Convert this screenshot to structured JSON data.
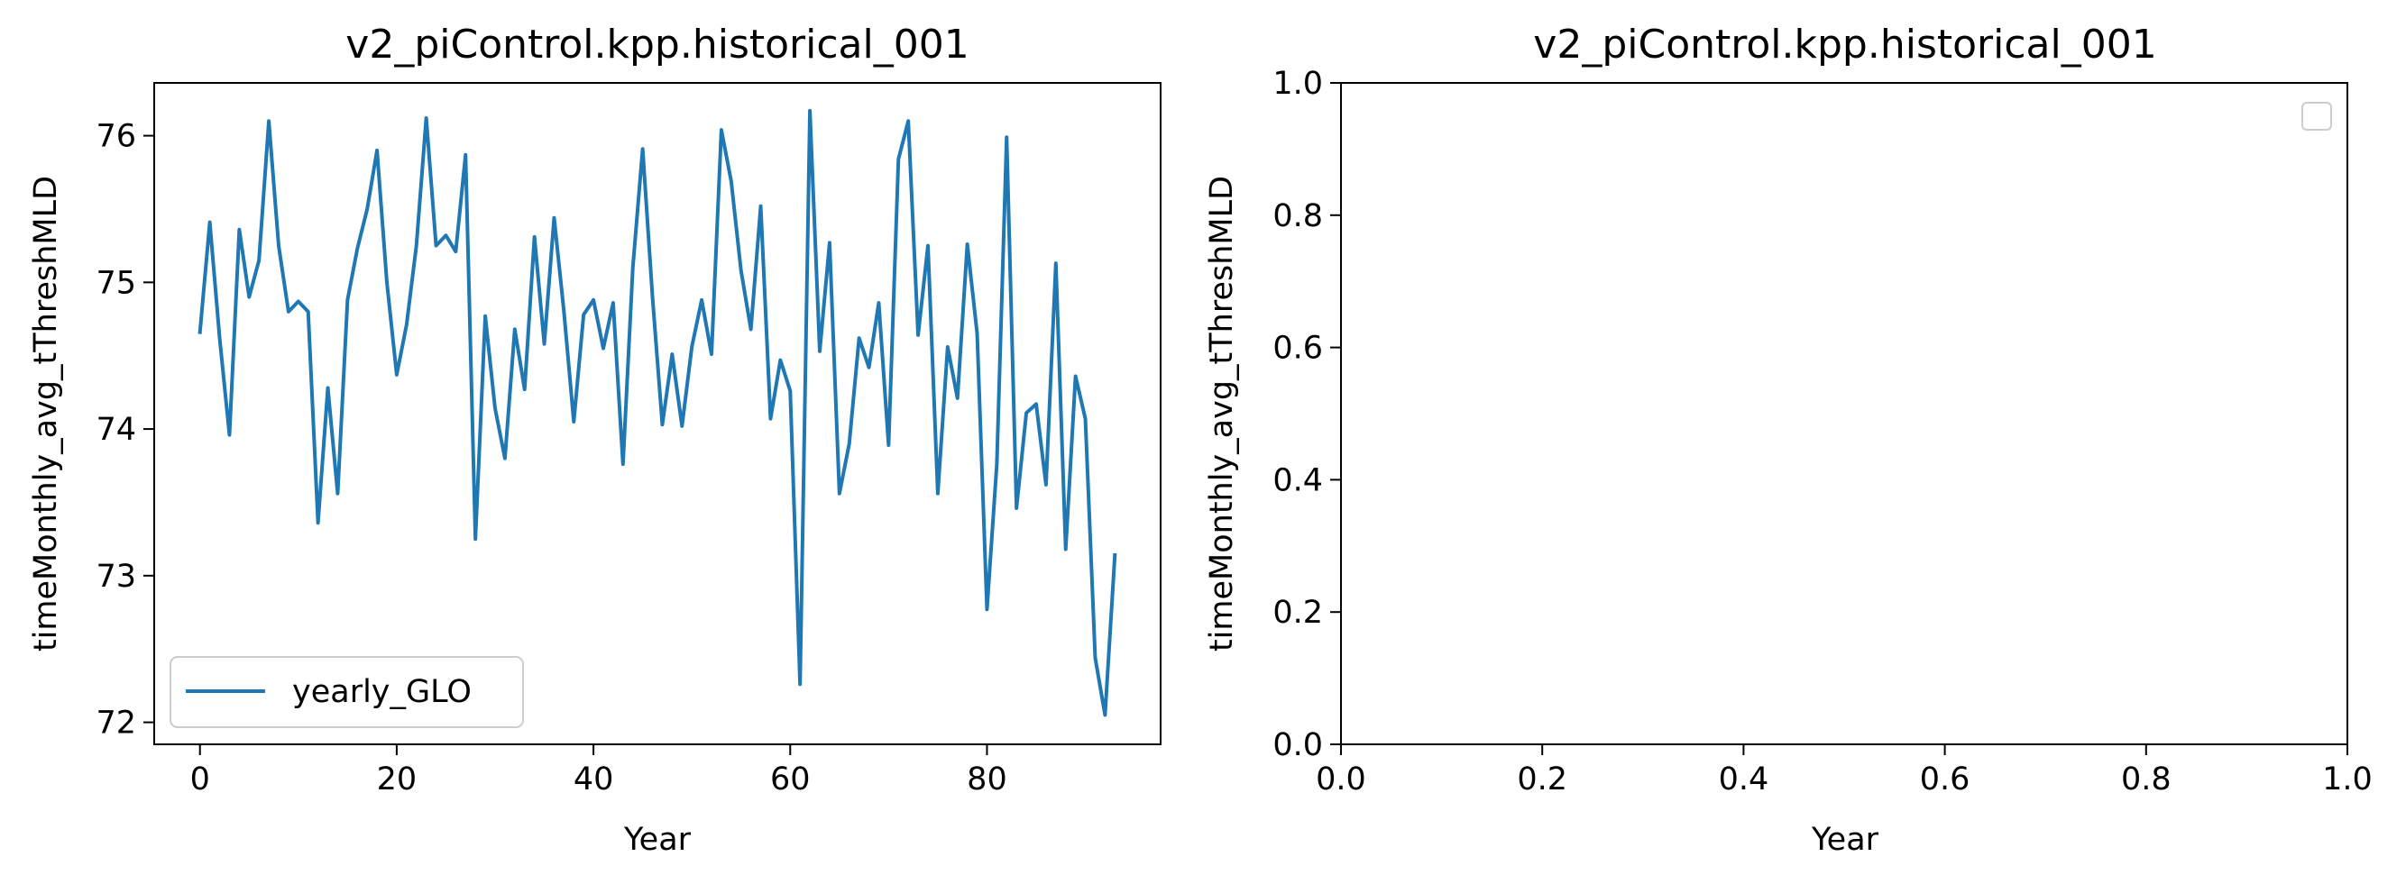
{
  "chart_data": [
    {
      "type": "line",
      "title": "v2_piControl.kpp.historical_001",
      "xlabel": "Year",
      "ylabel": "timeMonthly_avg_tThreshMLD",
      "xlim": [
        -4.65,
        97.65
      ],
      "ylim": [
        71.85,
        76.36
      ],
      "xticks": [
        0,
        20,
        40,
        60,
        80
      ],
      "yticks": [
        72,
        73,
        74,
        75,
        76
      ],
      "xtick_labels": [
        "0",
        "20",
        "40",
        "60",
        "80"
      ],
      "ytick_labels": [
        "72",
        "73",
        "74",
        "75",
        "76"
      ],
      "legend": "lower-left",
      "grid": false,
      "series": [
        {
          "name": "yearly_GLO",
          "color": "#1f77b4",
          "x": [
            0,
            1,
            2,
            3,
            4,
            5,
            6,
            7,
            8,
            9,
            10,
            11,
            12,
            13,
            14,
            15,
            16,
            17,
            18,
            19,
            20,
            21,
            22,
            23,
            24,
            25,
            26,
            27,
            28,
            29,
            30,
            31,
            32,
            33,
            34,
            35,
            36,
            37,
            38,
            39,
            40,
            41,
            42,
            43,
            44,
            45,
            46,
            47,
            48,
            49,
            50,
            51,
            52,
            53,
            54,
            55,
            56,
            57,
            58,
            59,
            60,
            61,
            62,
            63,
            64,
            65,
            66,
            67,
            68,
            69,
            70,
            71,
            72,
            73,
            74,
            75,
            76,
            77,
            78,
            79,
            80,
            81,
            82,
            83,
            84,
            85,
            86,
            87,
            88,
            89,
            90,
            91,
            92,
            93
          ],
          "y": [
            74.66,
            75.41,
            74.62,
            73.96,
            75.36,
            74.9,
            75.15,
            76.1,
            75.25,
            74.8,
            74.87,
            74.8,
            73.36,
            74.28,
            73.56,
            74.88,
            75.23,
            75.5,
            75.9,
            75.0,
            74.37,
            74.71,
            75.25,
            76.12,
            75.25,
            75.32,
            75.21,
            75.87,
            73.25,
            74.77,
            74.14,
            73.8,
            74.68,
            74.27,
            75.31,
            74.58,
            75.44,
            74.8,
            74.05,
            74.78,
            74.88,
            74.55,
            74.86,
            73.76,
            75.1,
            75.91,
            74.9,
            74.03,
            74.51,
            74.02,
            74.56,
            74.88,
            74.51,
            76.04,
            75.69,
            75.08,
            74.68,
            75.52,
            74.07,
            74.47,
            74.26,
            72.26,
            76.17,
            74.53,
            75.27,
            73.56,
            73.9,
            74.62,
            74.42,
            74.86,
            73.89,
            75.84,
            76.1,
            74.64,
            75.25,
            73.56,
            74.56,
            74.21,
            75.26,
            74.65,
            72.77,
            73.76,
            75.99,
            73.46,
            74.11,
            74.17,
            73.62,
            75.13,
            73.18,
            74.36,
            74.07,
            72.44,
            72.05,
            73.14
          ]
        }
      ]
    },
    {
      "type": "line",
      "title": "v2_piControl.kpp.historical_001",
      "xlabel": "Year",
      "ylabel": "timeMonthly_avg_tThreshMLD",
      "xlim": [
        0,
        1
      ],
      "ylim": [
        0,
        1
      ],
      "xticks": [
        0,
        0.2,
        0.4,
        0.6,
        0.8,
        1.0
      ],
      "yticks": [
        0,
        0.2,
        0.4,
        0.6,
        0.8,
        1.0
      ],
      "xtick_labels": [
        "0.0",
        "0.2",
        "0.4",
        "0.6",
        "0.8",
        "1.0"
      ],
      "ytick_labels": [
        "0.0",
        "0.2",
        "0.4",
        "0.6",
        "0.8",
        "1.0"
      ],
      "legend": "top-right",
      "grid": false,
      "series": []
    }
  ]
}
